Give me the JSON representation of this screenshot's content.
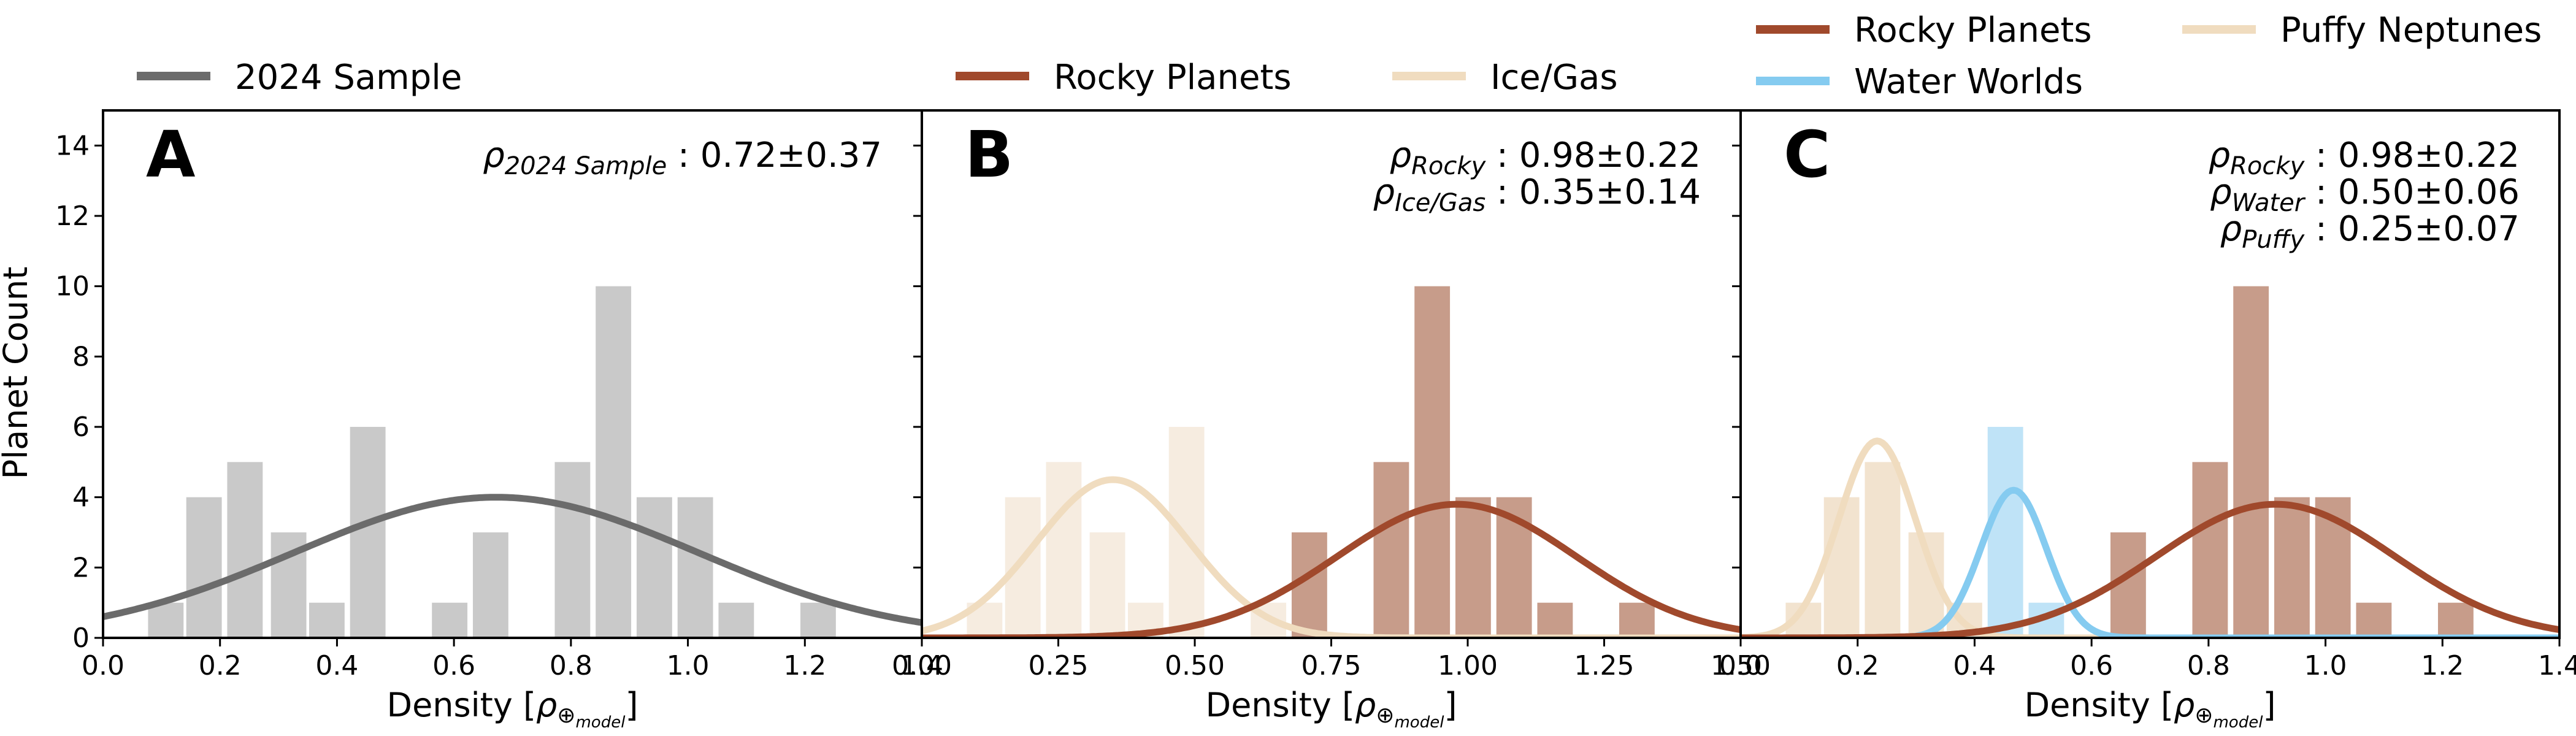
{
  "colors": {
    "sample": "#6b6b6b",
    "sample_bar": "#c9c9c9",
    "rocky": "#a0492c",
    "rocky_bar": "#c79c8a",
    "icegas": "#f0dcbf",
    "icegas_bar": "#f6ece0",
    "water": "#85cbf0",
    "water_bar": "#bfe3f7",
    "puffy": "#f0dcbf",
    "puffy_bar": "#f2e3cf"
  },
  "shared": {
    "ylabel": "Planet Count",
    "xlabel_main": "Density [",
    "rho": "ρ",
    "xlabel_sub": "⊕",
    "xlabel_subsub": "model",
    "xlabel_end": "]",
    "y_ticks": [
      "0",
      "2",
      "4",
      "6",
      "8",
      "10",
      "12",
      "14"
    ]
  },
  "chart_data": [
    {
      "type": "bar",
      "panel": "A",
      "x_ticks": [
        "0.0",
        "0.2",
        "0.4",
        "0.6",
        "0.8",
        "1.0",
        "1.2",
        "1.4"
      ],
      "xlim": [
        0,
        1.5
      ],
      "ylim": [
        0,
        15
      ],
      "legend": [
        {
          "name": "2024 Sample",
          "color_key": "sample"
        }
      ],
      "stats": [
        {
          "sub": "2024 Sample",
          "value": "0.72±0.37"
        }
      ],
      "series": [
        {
          "name": "2024 Sample",
          "bar_color_key": "sample_bar",
          "bars": [
            [
              0.115,
              1
            ],
            [
              0.185,
              4
            ],
            [
              0.26,
              5
            ],
            [
              0.34,
              3
            ],
            [
              0.41,
              1
            ],
            [
              0.485,
              6
            ],
            [
              0.635,
              1
            ],
            [
              0.71,
              3
            ],
            [
              0.86,
              5
            ],
            [
              0.935,
              10
            ],
            [
              1.01,
              4
            ],
            [
              1.085,
              4
            ],
            [
              1.16,
              1
            ],
            [
              1.31,
              1
            ]
          ],
          "fit": {
            "mean": 0.72,
            "sigma": 0.37,
            "peak": 4.0,
            "color_key": "sample"
          }
        }
      ]
    },
    {
      "type": "bar",
      "panel": "B",
      "x_ticks": [
        "0.00",
        "0.25",
        "0.50",
        "0.75",
        "1.00",
        "1.25",
        "1.50"
      ],
      "xlim": [
        0,
        1.5
      ],
      "ylim": [
        0,
        15
      ],
      "legend": [
        {
          "name": "Rocky Planets",
          "color_key": "rocky"
        },
        {
          "name": "Ice/Gas",
          "color_key": "icegas"
        }
      ],
      "stats": [
        {
          "sub": "Rocky",
          "value": "0.98±0.22"
        },
        {
          "sub": "Ice/Gas",
          "value": "0.35±0.14"
        }
      ],
      "series": [
        {
          "name": "Ice/Gas",
          "bar_color_key": "icegas_bar",
          "bars": [
            [
              0.115,
              1
            ],
            [
              0.185,
              4
            ],
            [
              0.26,
              5
            ],
            [
              0.34,
              3
            ],
            [
              0.41,
              1
            ],
            [
              0.485,
              6
            ],
            [
              0.635,
              1
            ]
          ],
          "fit": {
            "mean": 0.35,
            "sigma": 0.14,
            "peak": 4.5,
            "color_key": "icegas"
          }
        },
        {
          "name": "Rocky Planets",
          "bar_color_key": "rocky_bar",
          "bars": [
            [
              0.71,
              3
            ],
            [
              0.86,
              5
            ],
            [
              0.935,
              10
            ],
            [
              1.01,
              4
            ],
            [
              1.085,
              4
            ],
            [
              1.16,
              1
            ],
            [
              1.31,
              1
            ]
          ],
          "fit": {
            "mean": 0.98,
            "sigma": 0.22,
            "peak": 3.8,
            "color_key": "rocky"
          }
        }
      ]
    },
    {
      "type": "bar",
      "panel": "C",
      "x_ticks": [
        "0.0",
        "0.2",
        "0.4",
        "0.6",
        "0.8",
        "1.0",
        "1.2",
        "1.4"
      ],
      "xlim": [
        0,
        1.5
      ],
      "ylim": [
        0,
        15
      ],
      "legend": [
        {
          "name": "Rocky Planets",
          "color_key": "rocky"
        },
        {
          "name": "Puffy Neptunes",
          "color_key": "puffy"
        },
        {
          "name": "Water Worlds",
          "color_key": "water"
        }
      ],
      "stats": [
        {
          "sub": "Rocky",
          "value": "0.98±0.22"
        },
        {
          "sub": "Water",
          "value": "0.50±0.06"
        },
        {
          "sub": "Puffy",
          "value": "0.25±0.07"
        }
      ],
      "series": [
        {
          "name": "Puffy Neptunes",
          "bar_color_key": "puffy_bar",
          "bars": [
            [
              0.115,
              1
            ],
            [
              0.185,
              4
            ],
            [
              0.26,
              5
            ],
            [
              0.34,
              3
            ],
            [
              0.41,
              1
            ]
          ],
          "fit": {
            "mean": 0.25,
            "sigma": 0.07,
            "peak": 5.6,
            "color_key": "puffy"
          }
        },
        {
          "name": "Water Worlds",
          "bar_color_key": "water_bar",
          "bars": [
            [
              0.485,
              6
            ],
            [
              0.56,
              1
            ]
          ],
          "fit": {
            "mean": 0.5,
            "sigma": 0.06,
            "peak": 4.2,
            "color_key": "water"
          }
        },
        {
          "name": "Rocky Planets",
          "bar_color_key": "rocky_bar",
          "bars": [
            [
              0.71,
              3
            ],
            [
              0.86,
              5
            ],
            [
              0.935,
              10
            ],
            [
              1.01,
              4
            ],
            [
              1.085,
              4
            ],
            [
              1.16,
              1
            ],
            [
              1.31,
              1
            ]
          ],
          "fit": {
            "mean": 0.98,
            "sigma": 0.22,
            "peak": 3.8,
            "color_key": "rocky"
          }
        }
      ]
    }
  ]
}
